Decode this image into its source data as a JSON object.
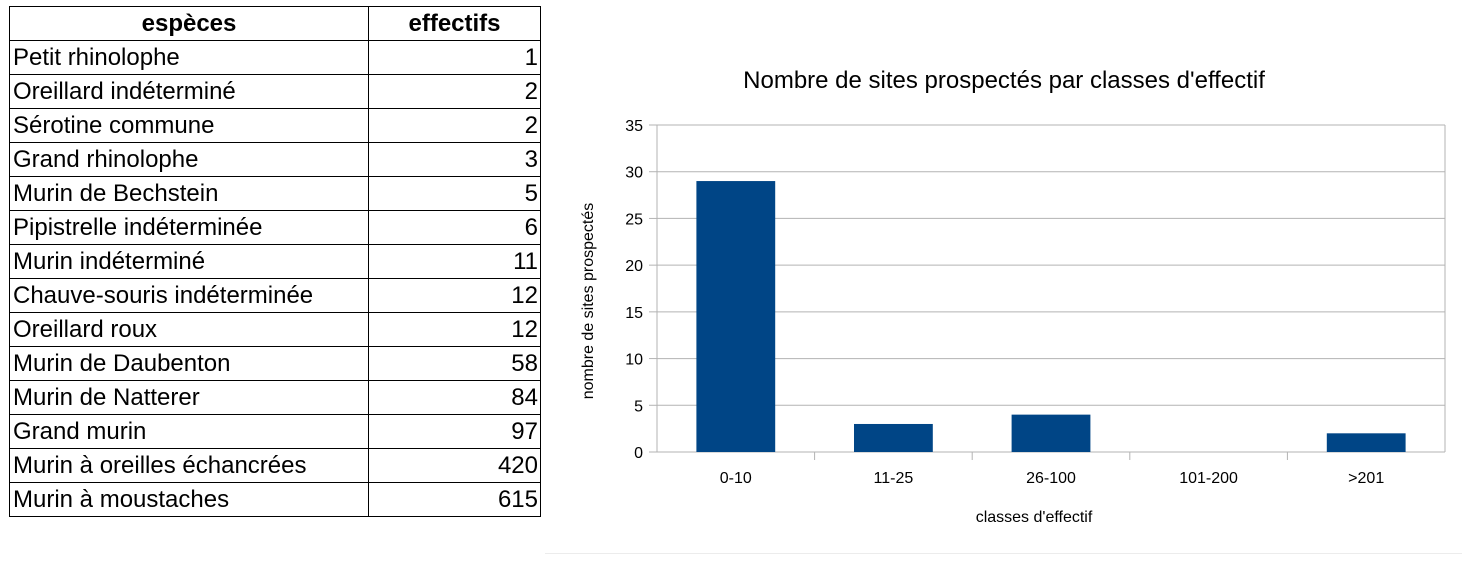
{
  "table": {
    "headers": [
      "espèces",
      "effectifs"
    ],
    "rows": [
      {
        "name": "Petit rhinolophe",
        "value": "1"
      },
      {
        "name": "Oreillard indéterminé",
        "value": "2"
      },
      {
        "name": "Sérotine commune",
        "value": "2"
      },
      {
        "name": "Grand rhinolophe",
        "value": "3"
      },
      {
        "name": "Murin de Bechstein",
        "value": "5"
      },
      {
        "name": "Pipistrelle indéterminée",
        "value": "6"
      },
      {
        "name": "Murin indéterminé",
        "value": "11"
      },
      {
        "name": "Chauve-souris indéterminée",
        "value": "12"
      },
      {
        "name": "Oreillard roux",
        "value": "12"
      },
      {
        "name": "Murin de Daubenton",
        "value": "58"
      },
      {
        "name": "Murin de Natterer",
        "value": "84"
      },
      {
        "name": "Grand murin",
        "value": "97"
      },
      {
        "name": "Murin à oreilles échancrées",
        "value": "420"
      },
      {
        "name": "Murin à moustaches",
        "value": "615"
      }
    ]
  },
  "chart_data": {
    "type": "bar",
    "title": "Nombre de sites prospectés par classes d'effectif",
    "xlabel": "classes d'effectif",
    "ylabel": "nombre de sites prospectés",
    "categories": [
      "0-10",
      "11-25",
      "26-100",
      "101-200",
      ">201"
    ],
    "values": [
      29,
      3,
      4,
      0,
      2
    ],
    "ylim": [
      0,
      35
    ],
    "yticks": [
      0,
      5,
      10,
      15,
      20,
      25,
      30,
      35
    ],
    "grid": true,
    "legend": "none",
    "bar_color": "#004586"
  }
}
